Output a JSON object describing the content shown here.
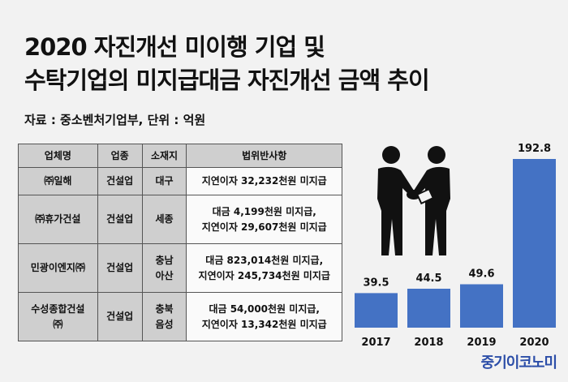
{
  "title": {
    "line1": "2020 자진개선 미이행 기업 및",
    "line2": "수탁기업의 미지급대금 자진개선 금액 추이"
  },
  "source": "자료 : 중소벤처기업부, 단위 : 억원",
  "table": {
    "headers": [
      "업체명",
      "업종",
      "소재지",
      "법위반사항"
    ],
    "rows": [
      {
        "company": [
          "㈜일해"
        ],
        "industry": [
          "건설업"
        ],
        "location": [
          "대구"
        ],
        "violation": [
          "지연이자 32,232천원 미지급"
        ]
      },
      {
        "company": [
          "㈜휴가건설"
        ],
        "industry": [
          "건설업"
        ],
        "location": [
          "세종"
        ],
        "violation": [
          "대금 4,199천원 미지급,",
          "지연이자 29,607천원 미지급"
        ]
      },
      {
        "company": [
          "민광이엔지㈜"
        ],
        "industry": [
          "건설업"
        ],
        "location": [
          "충남",
          "아산"
        ],
        "violation": [
          "대금 823,014천원 미지급,",
          "지연이자 245,734천원 미지급"
        ]
      },
      {
        "company": [
          "수성종합건설",
          "㈜"
        ],
        "industry": [
          "건설업"
        ],
        "location": [
          "충북",
          "음성"
        ],
        "violation": [
          "대금 54,000천원 미지급,",
          "지연이자 13,342천원 미지급"
        ]
      }
    ]
  },
  "chart_data": {
    "type": "bar",
    "categories": [
      "2017",
      "2018",
      "2019",
      "2020"
    ],
    "values": [
      39.5,
      44.5,
      49.6,
      192.8
    ],
    "ylim": [
      0,
      192.8
    ],
    "bar_color": "#4472c4",
    "grid": false,
    "legend": "none"
  },
  "icon": "handshake-icon",
  "logo": "중기이코노미",
  "colors": {
    "background": "#f2f2f2",
    "header_cell": "#cfcfcf",
    "logo": "#2c4ea8"
  }
}
